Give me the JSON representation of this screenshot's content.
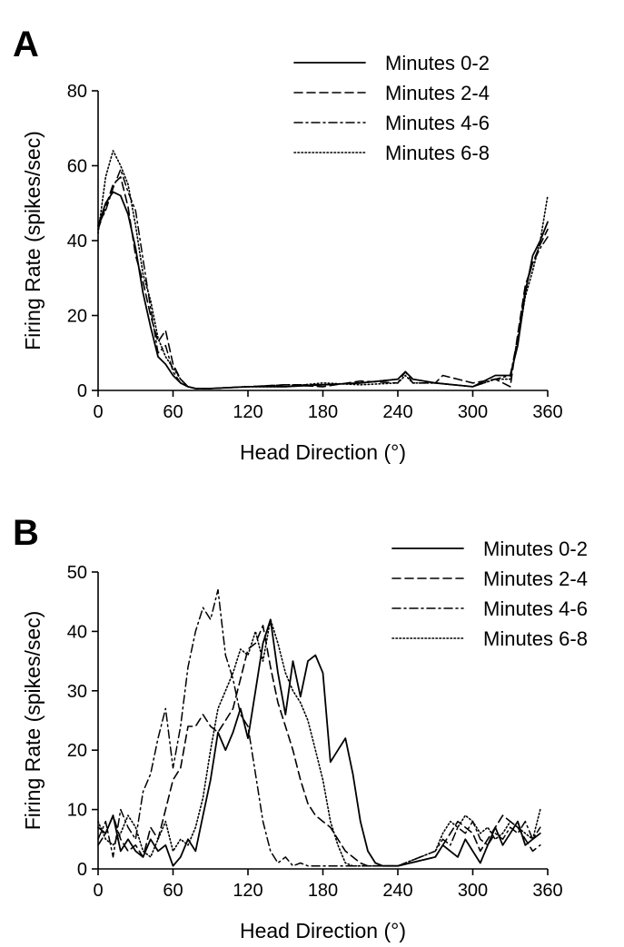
{
  "chart_data": [
    {
      "panel": "A",
      "type": "line",
      "xlabel": "Head Direction (°)",
      "ylabel": "Firing Rate (spikes/sec)",
      "xlim": [
        0,
        360
      ],
      "ylim": [
        0,
        80
      ],
      "xticks": [
        "0",
        "60",
        "120",
        "180",
        "240",
        "300",
        "360"
      ],
      "yticks": [
        "0",
        "20",
        "40",
        "60",
        "80"
      ],
      "grid": false,
      "legend_position": "top-right",
      "series": [
        {
          "name": "Minutes 0-2",
          "style": "solid",
          "x": [
            0,
            6,
            12,
            18,
            24,
            30,
            36,
            42,
            48,
            54,
            60,
            66,
            72,
            78,
            84,
            90,
            120,
            150,
            180,
            210,
            240,
            246,
            252,
            270,
            300,
            318,
            330,
            336,
            342,
            348,
            354,
            360
          ],
          "y": [
            44,
            50,
            53,
            52,
            47,
            38,
            26,
            17,
            9,
            7,
            4,
            2,
            1,
            0.5,
            0.5,
            0.5,
            1,
            1,
            1.5,
            2,
            3,
            5,
            3,
            2,
            1,
            4,
            4,
            12,
            26,
            36,
            40,
            45
          ]
        },
        {
          "name": "Minutes 2-4",
          "style": "dashed",
          "x": [
            0,
            6,
            12,
            18,
            24,
            30,
            36,
            42,
            48,
            54,
            60,
            66,
            72,
            78,
            84,
            90,
            120,
            150,
            180,
            210,
            240,
            246,
            252,
            270,
            276,
            300,
            318,
            330,
            336,
            342,
            348,
            354,
            360
          ],
          "y": [
            43,
            49,
            55,
            57,
            49,
            36,
            29,
            20,
            13,
            16,
            7,
            3,
            1,
            0.5,
            0.5,
            0.5,
            1,
            1.5,
            1,
            2.5,
            2,
            5,
            2,
            2,
            4,
            2,
            3,
            1,
            15,
            28,
            34,
            39,
            43
          ]
        },
        {
          "name": "Minutes 4-6",
          "style": "dashdot",
          "x": [
            0,
            6,
            12,
            18,
            24,
            30,
            36,
            42,
            48,
            54,
            60,
            66,
            72,
            78,
            84,
            90,
            120,
            150,
            180,
            210,
            240,
            246,
            252,
            270,
            300,
            318,
            330,
            336,
            342,
            348,
            354,
            360
          ],
          "y": [
            44,
            48,
            54,
            59,
            53,
            48,
            35,
            22,
            10,
            12,
            5,
            2,
            1,
            0.5,
            0.5,
            0.5,
            1,
            1.5,
            1.5,
            2,
            3,
            5,
            3,
            2,
            1,
            3,
            4,
            14,
            27,
            34,
            38,
            41
          ]
        },
        {
          "name": "Minutes 6-8",
          "style": "dotted",
          "x": [
            0,
            6,
            12,
            18,
            24,
            30,
            36,
            42,
            48,
            54,
            60,
            66,
            72,
            78,
            84,
            90,
            120,
            150,
            180,
            210,
            240,
            246,
            252,
            270,
            300,
            318,
            330,
            336,
            342,
            348,
            354,
            360
          ],
          "y": [
            42,
            57,
            64,
            60,
            55,
            44,
            31,
            24,
            14,
            9,
            6,
            3,
            1,
            0.5,
            0.5,
            0.5,
            1,
            1,
            2,
            1.5,
            2,
            4,
            2,
            2,
            1,
            3,
            3,
            13,
            25,
            32,
            40,
            52
          ]
        }
      ]
    },
    {
      "panel": "B",
      "type": "line",
      "xlabel": "Head Direction (°)",
      "ylabel": "Firing Rate (spikes/sec)",
      "xlim": [
        0,
        360
      ],
      "ylim": [
        0,
        50
      ],
      "xticks": [
        "0",
        "60",
        "120",
        "180",
        "240",
        "300",
        "360"
      ],
      "yticks": [
        "0",
        "10",
        "20",
        "30",
        "40",
        "50"
      ],
      "grid": false,
      "legend_position": "top-right",
      "series": [
        {
          "name": "Minutes 0-2",
          "style": "solid",
          "x": [
            0,
            6,
            12,
            18,
            24,
            30,
            36,
            42,
            48,
            54,
            60,
            66,
            72,
            78,
            84,
            90,
            96,
            102,
            108,
            114,
            120,
            126,
            132,
            138,
            144,
            150,
            156,
            162,
            168,
            174,
            180,
            186,
            192,
            198,
            204,
            210,
            216,
            222,
            228,
            234,
            240,
            270,
            276,
            282,
            288,
            294,
            300,
            306,
            312,
            318,
            324,
            330,
            336,
            342,
            348,
            354
          ],
          "y": [
            7,
            6,
            9,
            3,
            5,
            3,
            2,
            5,
            3,
            4,
            0.5,
            2,
            5,
            3,
            9,
            15,
            23,
            20,
            23,
            27,
            22,
            30,
            38,
            42,
            33,
            26,
            35,
            29,
            35,
            36,
            33,
            18,
            20,
            22,
            16,
            8,
            3,
            1,
            0.5,
            0.5,
            0.5,
            2,
            4,
            3,
            2,
            5,
            3,
            1,
            4,
            7,
            4,
            6,
            8,
            4,
            5,
            6
          ]
        },
        {
          "name": "Minutes 2-4",
          "style": "dashed",
          "x": [
            0,
            6,
            12,
            18,
            24,
            30,
            36,
            42,
            48,
            54,
            60,
            66,
            72,
            78,
            84,
            90,
            96,
            102,
            108,
            114,
            120,
            126,
            132,
            138,
            144,
            150,
            156,
            162,
            168,
            174,
            180,
            186,
            192,
            198,
            204,
            210,
            216,
            222,
            228,
            234,
            240,
            270,
            276,
            282,
            288,
            294,
            300,
            306,
            312,
            318,
            324,
            330,
            336,
            342,
            348,
            354
          ],
          "y": [
            4,
            6,
            9,
            5,
            3,
            4,
            2,
            7,
            5,
            10,
            15,
            17,
            24,
            24,
            26,
            24,
            23,
            25,
            27,
            32,
            37,
            38,
            41,
            34,
            28,
            24,
            20,
            15,
            11,
            9,
            8,
            7,
            5,
            3,
            2,
            1,
            0.5,
            0.5,
            0.5,
            0.5,
            0.5,
            2,
            4,
            6,
            8,
            7,
            6,
            3,
            5,
            7,
            9,
            8,
            7,
            5,
            3,
            4
          ]
        },
        {
          "name": "Minutes 4-6",
          "style": "dashdot",
          "x": [
            0,
            6,
            12,
            18,
            24,
            30,
            36,
            42,
            48,
            54,
            60,
            66,
            72,
            78,
            84,
            90,
            96,
            102,
            108,
            114,
            120,
            126,
            132,
            138,
            144,
            150,
            156,
            162,
            168,
            174,
            180,
            186,
            192,
            198,
            204,
            210,
            216,
            222,
            228,
            234,
            240,
            270,
            276,
            282,
            288,
            294,
            300,
            306,
            312,
            318,
            324,
            330,
            336,
            342,
            348,
            354
          ],
          "y": [
            5,
            8,
            2,
            10,
            7,
            5,
            13,
            16,
            22,
            27,
            17,
            24,
            34,
            40,
            44,
            42,
            47,
            36,
            32,
            26,
            24,
            16,
            8,
            3,
            1,
            2,
            0.5,
            1,
            0.5,
            0.5,
            0.5,
            0.5,
            0.5,
            0.5,
            0.5,
            0.5,
            0.5,
            0.5,
            0.5,
            0.5,
            0.5,
            3,
            5,
            4,
            7,
            6,
            8,
            5,
            4,
            6,
            5,
            7,
            6,
            8,
            5,
            7
          ]
        },
        {
          "name": "Minutes 6-8",
          "style": "dotted",
          "x": [
            0,
            6,
            12,
            18,
            24,
            30,
            36,
            42,
            48,
            54,
            60,
            66,
            72,
            78,
            84,
            90,
            96,
            102,
            108,
            114,
            120,
            126,
            132,
            138,
            144,
            150,
            156,
            162,
            168,
            174,
            180,
            186,
            192,
            198,
            204,
            210,
            216,
            222,
            228,
            234,
            240,
            270,
            276,
            282,
            288,
            294,
            300,
            306,
            312,
            318,
            324,
            330,
            336,
            342,
            348,
            354
          ],
          "y": [
            8,
            5,
            4,
            6,
            9,
            7,
            3,
            2,
            5,
            8,
            3,
            5,
            4,
            7,
            12,
            20,
            27,
            30,
            33,
            37,
            36,
            40,
            35,
            42,
            38,
            33,
            30,
            28,
            25,
            20,
            15,
            8,
            4,
            1,
            0.5,
            0.5,
            0.5,
            0.5,
            0.5,
            0.5,
            0.5,
            3,
            6,
            8,
            7,
            9,
            8,
            6,
            7,
            5,
            6,
            8,
            7,
            6,
            5,
            10
          ]
        }
      ]
    }
  ]
}
